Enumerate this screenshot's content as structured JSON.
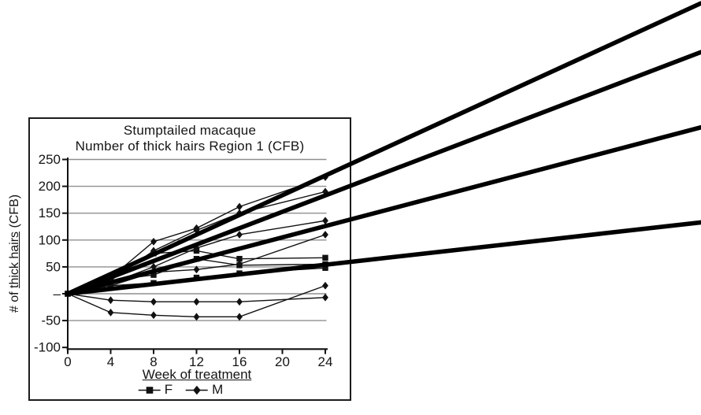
{
  "figure": {
    "title_line1": "Stumptailed macaque",
    "title_line2": "Number of thick hairs Region 1 (CFB)",
    "y_label_prefix": "# of ",
    "y_label_underlined": "thick hairs",
    "y_label_suffix": " (CFB)",
    "x_axis_label": "Week of treatment",
    "legend": [
      {
        "label": "F",
        "marker": "square"
      },
      {
        "label": "M",
        "marker": "diamond"
      }
    ],
    "ink_color": "#111111",
    "grid_color": "#8f8f8f"
  },
  "chart_data": {
    "type": "line",
    "title": "Stumptailed macaque",
    "subtitle": "Number of thick hairs Region 1 (CFB)",
    "xlabel": "Week of treatment",
    "ylabel": "# of thick hairs (CFB)",
    "xlim": [
      0,
      24
    ],
    "ylim": [
      -100,
      250
    ],
    "grid": true,
    "legend_position": "bottom",
    "x_ticks": [
      0,
      4,
      8,
      12,
      16,
      20,
      24
    ],
    "x_tick_labels": [
      "0",
      "4",
      "8",
      "12",
      "16",
      "20",
      "24"
    ],
    "y_ticks": [
      250,
      200,
      150,
      100,
      50,
      0,
      -50,
      -100
    ],
    "y_tick_labels": [
      "250",
      "200",
      "150",
      "100",
      "50",
      "–",
      "-50",
      "-100"
    ],
    "x": [
      0,
      4,
      8,
      12,
      16,
      24
    ],
    "series": [
      {
        "name": "F1",
        "group": "F",
        "marker": "square",
        "values": [
          0,
          30,
          75,
          80,
          65,
          67
        ]
      },
      {
        "name": "F2",
        "group": "F",
        "marker": "square",
        "values": [
          0,
          25,
          35,
          65,
          53,
          55
        ]
      },
      {
        "name": "F3",
        "group": "F",
        "marker": "square",
        "values": [
          0,
          15,
          20,
          30,
          38,
          48
        ]
      },
      {
        "name": "M1",
        "group": "M",
        "marker": "diamond",
        "values": [
          0,
          30,
          97,
          122,
          162,
          217
        ]
      },
      {
        "name": "M2",
        "group": "M",
        "marker": "diamond",
        "values": [
          0,
          25,
          80,
          118,
          150,
          190
        ]
      },
      {
        "name": "M3",
        "group": "M",
        "marker": "diamond",
        "values": [
          0,
          20,
          50,
          85,
          110,
          136
        ]
      },
      {
        "name": "M4",
        "group": "M",
        "marker": "diamond",
        "values": [
          0,
          15,
          40,
          45,
          55,
          110
        ]
      },
      {
        "name": "M5",
        "group": "M",
        "marker": "diamond",
        "values": [
          0,
          -12,
          -15,
          -15,
          -15,
          -7
        ]
      },
      {
        "name": "M6",
        "group": "M",
        "marker": "diamond",
        "values": [
          0,
          -35,
          -40,
          -43,
          -43,
          15
        ]
      }
    ],
    "trend_lines": {
      "note": "four thick straight lines from the origin (week 0, value 0) that extend past the plot frame to the right edge of the image",
      "origin": [
        0,
        0
      ],
      "value_at_week24": [
        220,
        183,
        126,
        54
      ],
      "extend_to_week": 59
    }
  }
}
